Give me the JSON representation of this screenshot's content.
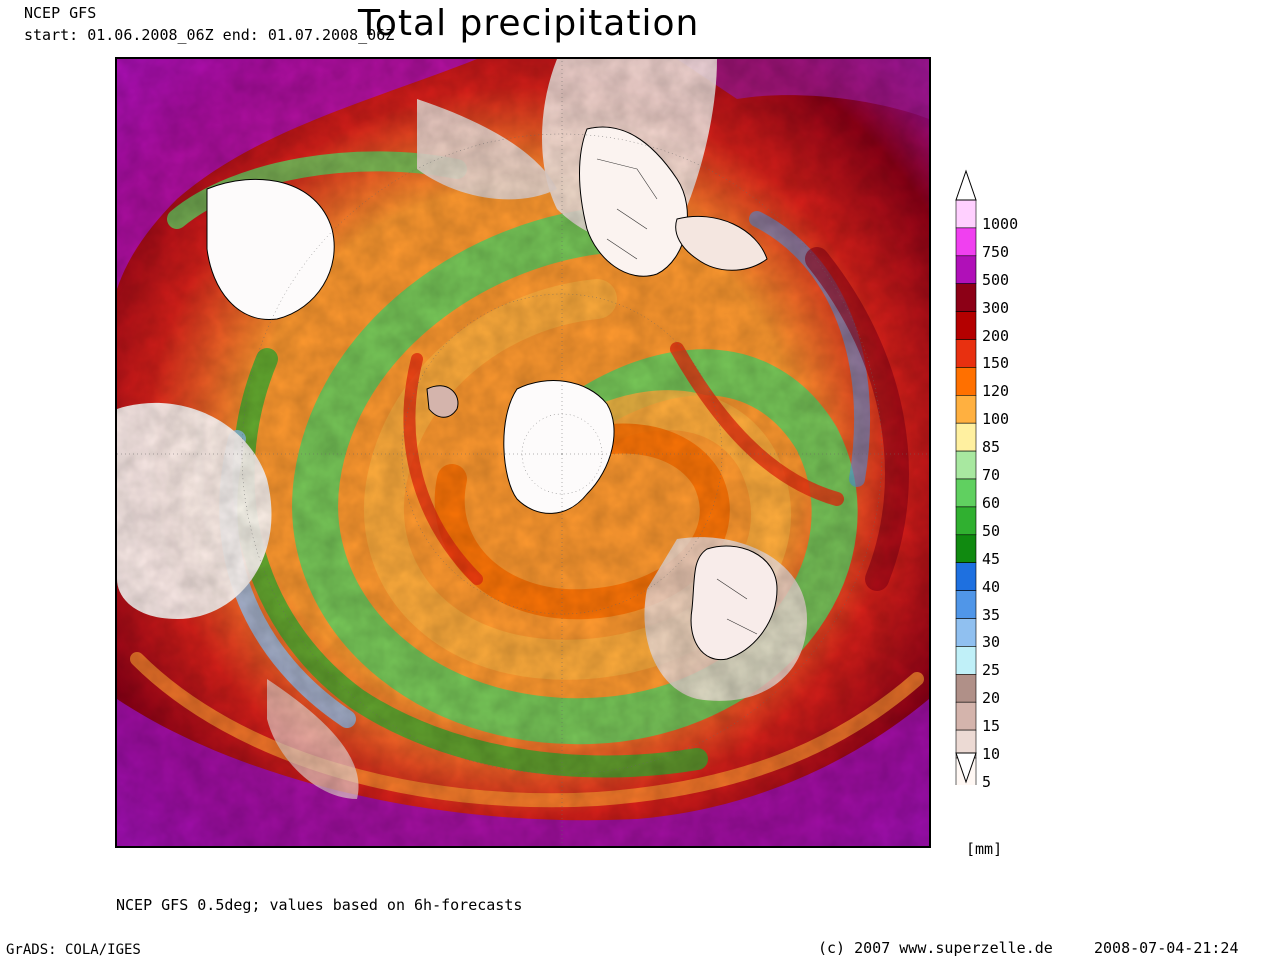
{
  "header": {
    "model": "NCEP GFS",
    "period": "start: 01.06.2008_06Z  end: 01.07.2008_06Z",
    "title": "Total precipitation"
  },
  "legend": {
    "unit": "[mm]",
    "levels": [
      {
        "label": "1000",
        "color": "#ffd0ff"
      },
      {
        "label": "750",
        "color": "#f040f0"
      },
      {
        "label": "500",
        "color": "#b010b8"
      },
      {
        "label": "300",
        "color": "#8c0016"
      },
      {
        "label": "200",
        "color": "#b40000"
      },
      {
        "label": "150",
        "color": "#e83010"
      },
      {
        "label": "120",
        "color": "#ff7000"
      },
      {
        "label": "100",
        "color": "#ffb040"
      },
      {
        "label": "85",
        "color": "#fff0a0"
      },
      {
        "label": "70",
        "color": "#a8e8a0"
      },
      {
        "label": "60",
        "color": "#60d060"
      },
      {
        "label": "50",
        "color": "#30b030"
      },
      {
        "label": "45",
        "color": "#108a10"
      },
      {
        "label": "40",
        "color": "#1e70e0"
      },
      {
        "label": "35",
        "color": "#5096e8"
      },
      {
        "label": "30",
        "color": "#90c0f0"
      },
      {
        "label": "25",
        "color": "#c0f0f8"
      },
      {
        "label": "20",
        "color": "#b09088"
      },
      {
        "label": "15",
        "color": "#d4b4ac"
      },
      {
        "label": "10",
        "color": "#ecdad4"
      },
      {
        "label": "5",
        "color": "#fff8f4"
      }
    ]
  },
  "footer": {
    "note": "NCEP GFS 0.5deg; values based on 6h-forecasts",
    "software": "GrADS: COLA/IGES",
    "copyright": "(c) 2007 www.superzelle.de",
    "timestamp": "2008-07-04-21:24"
  }
}
